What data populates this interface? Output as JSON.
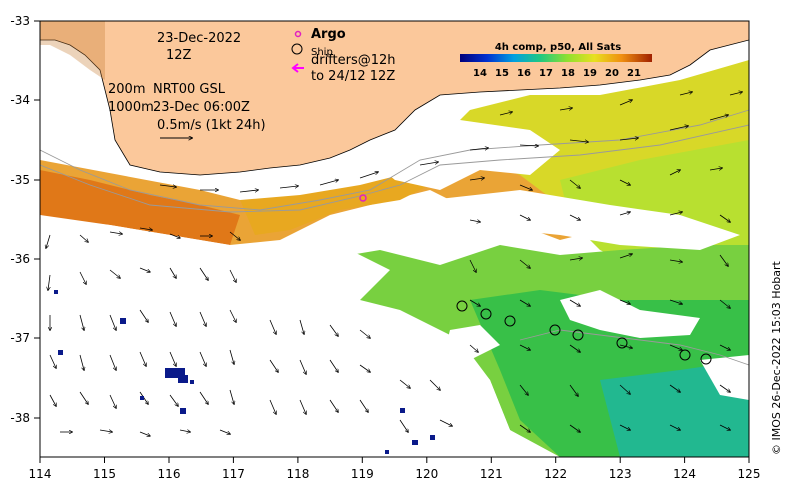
{
  "map": {
    "date_label": "23-Dec-2022",
    "hour_label": "12Z",
    "depth_200": "200m",
    "depth_1000": "1000m",
    "product_label": "NRT00 GSL",
    "product_time": "23-Dec 06:00Z",
    "vector_scale_label": "0.5m/s (1kt 24h)",
    "legend": {
      "argo_label": "Argo",
      "ship_label": "Ship",
      "drifters_label": "drifters@12h",
      "drifters_sub": "to 24/12 12Z",
      "argo_color": "#e020c0",
      "drifter_color": "#ff00ff"
    },
    "colorbar": {
      "title": "4h comp, p50, All Sats",
      "ticks": [
        "14",
        "15",
        "16",
        "17",
        "18",
        "19",
        "20",
        "21"
      ]
    },
    "x_ticks": [
      "114",
      "115",
      "116",
      "117",
      "118",
      "119",
      "120",
      "121",
      "122",
      "123",
      "124",
      "125"
    ],
    "y_ticks": [
      "-33",
      "-34",
      "-35",
      "-36",
      "-37",
      "-38"
    ],
    "credit": "© IMOS 26-Dec-2022 15:03 Hobart",
    "colors": {
      "land": "#fbc89b",
      "coast": "#000000",
      "isobath": "#9a9a9a"
    }
  }
}
